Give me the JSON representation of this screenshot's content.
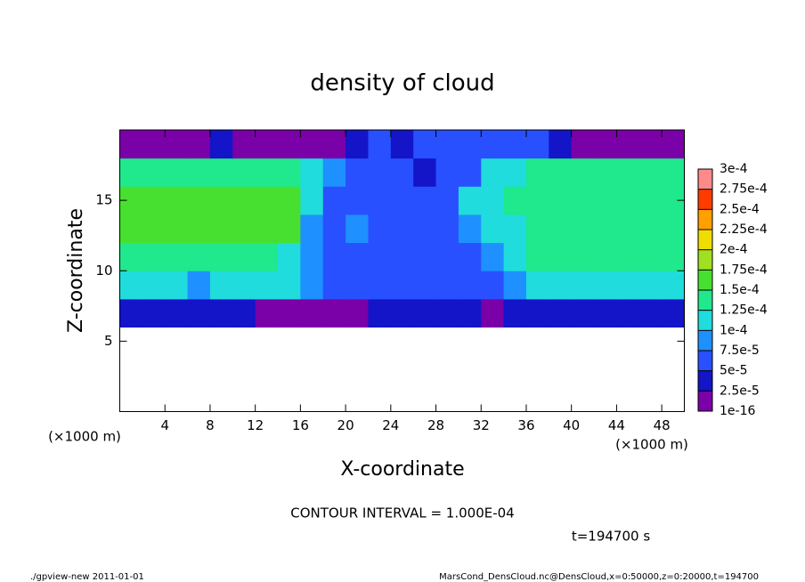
{
  "chart_data": {
    "type": "heatmap",
    "title": "density of cloud",
    "x_label": "X-coordinate",
    "y_label": "Z-coordinate",
    "x_unit": "(×1000 m)",
    "contour_note": "CONTOUR INTERVAL = 1.000E-04",
    "time_note": "t=194700 s",
    "footer_left": "./gpview-new  2011-01-01",
    "footer_right": "MarsCond_DensCloud.nc@DensCloud,x=0:50000,z=0:20000,t=194700",
    "xlim": [
      0,
      50
    ],
    "ylim": [
      0,
      20
    ],
    "xticks": [
      4,
      8,
      12,
      16,
      20,
      24,
      28,
      32,
      36,
      40,
      44,
      48
    ],
    "yticks": [
      5,
      10,
      15
    ],
    "x": [
      1,
      3,
      5,
      7,
      9,
      11,
      13,
      15,
      17,
      19,
      21,
      23,
      25,
      27,
      29,
      31,
      33,
      35,
      37,
      39,
      41,
      43,
      45,
      47,
      49
    ],
    "y": [
      7,
      9,
      11,
      13,
      15,
      17,
      19
    ],
    "z": [
      [
        4e-05,
        4e-05,
        4e-05,
        4e-05,
        3e-05,
        3e-05,
        2e-05,
        2e-05,
        2e-05,
        2e-05,
        2e-05,
        3e-05,
        3e-05,
        3e-05,
        3e-05,
        3e-05,
        2e-05,
        3e-05,
        4e-05,
        4e-05,
        4e-05,
        4e-05,
        4e-05,
        4e-05,
        4e-05
      ],
      [
        0.00011,
        0.00011,
        0.00011,
        8e-05,
        0.0001,
        0.0001,
        0.0001,
        0.0001,
        8e-05,
        6e-05,
        6e-05,
        6e-05,
        6e-05,
        6e-05,
        6e-05,
        6e-05,
        6e-05,
        9e-05,
        0.00011,
        0.00011,
        0.00011,
        0.00011,
        0.00011,
        0.00011,
        0.00011
      ],
      [
        0.00014,
        0.00014,
        0.00014,
        0.00014,
        0.00014,
        0.00014,
        0.00014,
        0.00012,
        9e-05,
        7e-05,
        6e-05,
        6e-05,
        6e-05,
        6e-05,
        6e-05,
        6e-05,
        8e-05,
        0.00011,
        0.00013,
        0.00013,
        0.00013,
        0.00013,
        0.00013,
        0.00013,
        0.00013
      ],
      [
        0.00015,
        0.00015,
        0.00015,
        0.00015,
        0.00015,
        0.00015,
        0.00015,
        0.00015,
        9e-05,
        7e-05,
        8e-05,
        6e-05,
        6e-05,
        6e-05,
        6e-05,
        8e-05,
        0.0001,
        0.00012,
        0.00014,
        0.00014,
        0.00014,
        0.00014,
        0.00014,
        0.00014,
        0.00014
      ],
      [
        0.00015,
        0.00015,
        0.00015,
        0.00015,
        0.00015,
        0.00015,
        0.00015,
        0.00015,
        0.0001,
        6e-05,
        5e-05,
        5e-05,
        5e-05,
        5e-05,
        7e-05,
        0.0001,
        0.00011,
        0.00013,
        0.00014,
        0.00014,
        0.00014,
        0.00014,
        0.00014,
        0.00014,
        0.00014
      ],
      [
        0.00014,
        0.00014,
        0.00014,
        0.00014,
        0.00014,
        0.00014,
        0.00014,
        0.00013,
        0.00011,
        8e-05,
        6e-05,
        5e-05,
        6e-05,
        4e-05,
        5e-05,
        7e-05,
        0.0001,
        0.00012,
        0.00014,
        0.00014,
        0.00014,
        0.00014,
        0.00014,
        0.00014,
        0.00014
      ],
      [
        1e-05,
        2e-05,
        2e-05,
        2e-05,
        3e-05,
        2e-05,
        2e-05,
        1e-05,
        1e-05,
        2e-05,
        4e-05,
        5e-05,
        4e-05,
        5e-05,
        6e-05,
        6e-05,
        5e-05,
        7e-05,
        5e-05,
        3e-05,
        2e-05,
        1e-05,
        1e-05,
        1e-05,
        2e-05
      ]
    ],
    "levels": [
      {
        "value": 1e-16,
        "label": "1e-16"
      },
      {
        "value": 2.5e-05,
        "label": "2.5e-5"
      },
      {
        "value": 5e-05,
        "label": "5e-5"
      },
      {
        "value": 7.5e-05,
        "label": "7.5e-5"
      },
      {
        "value": 0.0001,
        "label": "1e-4"
      },
      {
        "value": 0.000125,
        "label": "1.25e-4"
      },
      {
        "value": 0.00015,
        "label": "1.5e-4"
      },
      {
        "value": 0.000175,
        "label": "1.75e-4"
      },
      {
        "value": 0.0002,
        "label": "2e-4"
      },
      {
        "value": 0.000225,
        "label": "2.25e-4"
      },
      {
        "value": 0.00025,
        "label": "2.5e-4"
      },
      {
        "value": 0.000275,
        "label": "2.75e-4"
      },
      {
        "value": 0.0003,
        "label": "3e-4"
      }
    ],
    "colors": [
      "#7a00a8",
      "#1414c8",
      "#2850ff",
      "#1e90ff",
      "#20dcdc",
      "#20e88c",
      "#48e030",
      "#a0e020",
      "#f0dc00",
      "#ffa000",
      "#ff3c00",
      "#ff8a8a"
    ]
  }
}
